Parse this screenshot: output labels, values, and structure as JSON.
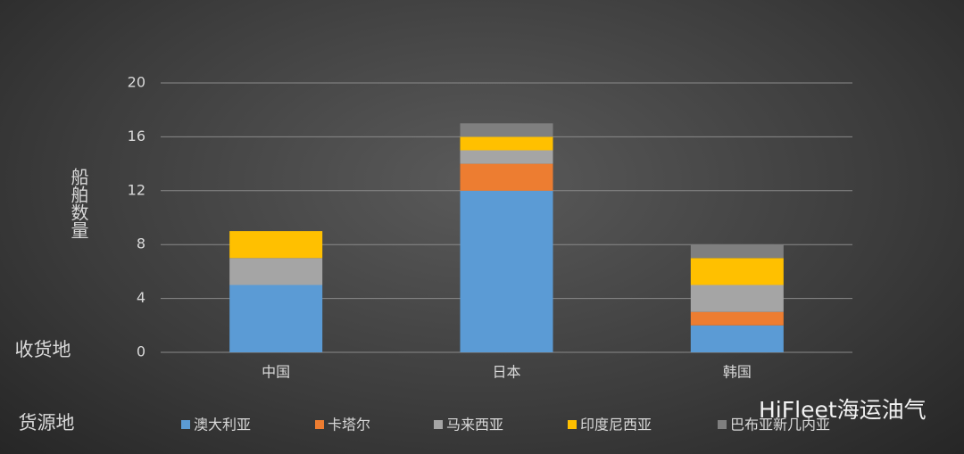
{
  "chart_data": {
    "type": "stacked_bar",
    "y_label": "船舶数量",
    "x_label": "收货地",
    "legend_title": "货源地",
    "watermark": "HiFleet海运油气",
    "categories": [
      "中国",
      "日本",
      "韩国"
    ],
    "series": [
      {
        "name": "澳大利亚",
        "color": "#5b9bd5",
        "values": [
          5,
          12,
          2
        ]
      },
      {
        "name": "卡塔尔",
        "color": "#ed7d31",
        "values": [
          0,
          2,
          1
        ]
      },
      {
        "name": "马来西亚",
        "color": "#a5a5a5",
        "values": [
          2,
          1,
          2
        ]
      },
      {
        "name": "印度尼西亚",
        "color": "#ffc000",
        "values": [
          2,
          1,
          2
        ]
      },
      {
        "name": "巴布亚新几内亚",
        "color": "#7f7f7f",
        "values": [
          0,
          1,
          1
        ]
      }
    ],
    "ylim": [
      0,
      20
    ],
    "yticks": [
      0,
      4,
      8,
      12,
      16,
      20
    ],
    "grid": true
  }
}
